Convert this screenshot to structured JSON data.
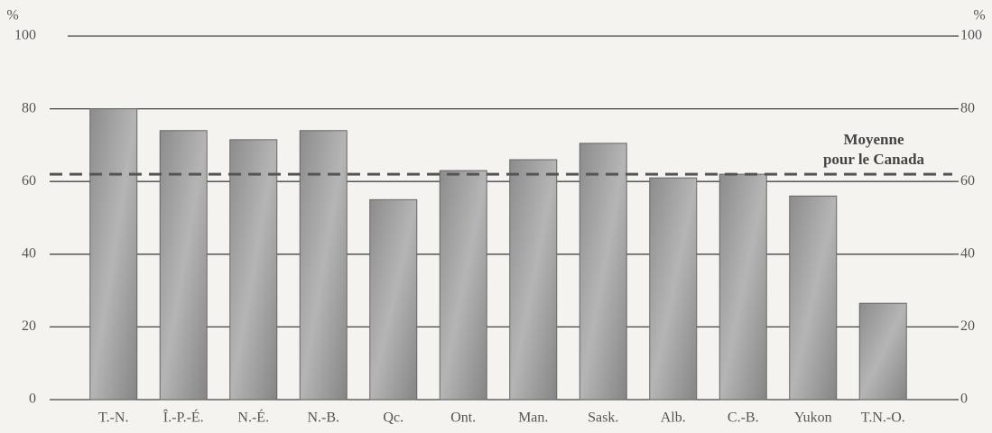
{
  "chart_data": {
    "type": "bar",
    "categories": [
      "T.-N.",
      "Î.-P.-É.",
      "N.-É.",
      "N.-B.",
      "Qc.",
      "Ont.",
      "Man.",
      "Sask.",
      "Alb.",
      "C.-B.",
      "Yukon",
      "T.N.-O."
    ],
    "values": [
      80,
      74,
      71.5,
      74,
      55,
      63,
      66,
      70.5,
      61,
      62,
      56,
      26.5
    ],
    "color": "#9a9a9a",
    "y_label": "%",
    "y2_label": "%",
    "ylim": [
      0,
      100
    ],
    "yticks": [
      0,
      20,
      40,
      60,
      80,
      100
    ],
    "y2lim": [
      0,
      100
    ],
    "y2ticks": [
      0,
      20,
      40,
      60,
      80,
      100
    ],
    "grid": true,
    "reference_line": {
      "value": 62,
      "label": [
        "Moyenne",
        "pour le Canada"
      ]
    }
  }
}
